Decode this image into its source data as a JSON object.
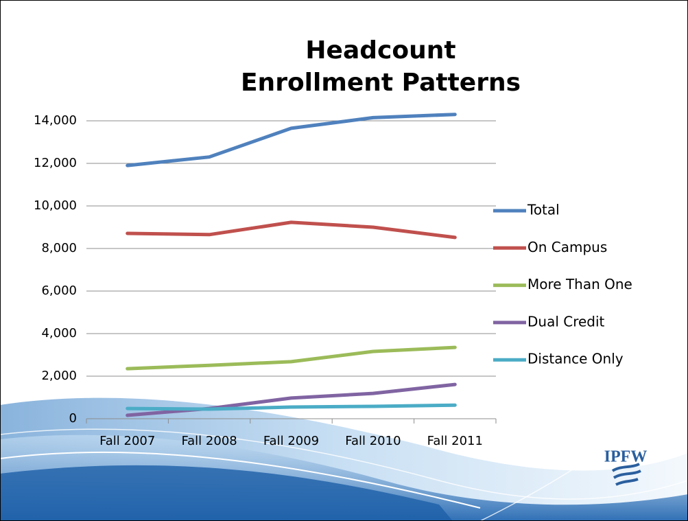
{
  "chart_data": {
    "type": "line",
    "title": [
      "Headcount",
      "Enrollment Patterns"
    ],
    "categories": [
      "Fall 2007",
      "Fall 2008",
      "Fall 2009",
      "Fall 2010",
      "Fall 2011"
    ],
    "series": [
      {
        "name": "Total",
        "color": "#4f81bd",
        "values": [
          11900,
          12300,
          13650,
          14150,
          14300
        ]
      },
      {
        "name": "On Campus",
        "color": "#c0504d",
        "values": [
          8710,
          8650,
          9230,
          9000,
          8520
        ]
      },
      {
        "name": "More Than One",
        "color": "#9bbb59",
        "values": [
          2350,
          2510,
          2680,
          3160,
          3350
        ]
      },
      {
        "name": "Dual Credit",
        "color": "#8064a2",
        "values": [
          160,
          480,
          970,
          1190,
          1610
        ]
      },
      {
        "name": "Distance Only",
        "color": "#4bacc6",
        "values": [
          480,
          450,
          550,
          580,
          640
        ]
      }
    ],
    "ylim": [
      0,
      14000
    ],
    "yticks": [
      0,
      {
        "value": 2000,
        "label": "2,000"
      },
      {
        "value": 4000,
        "label": "4,000"
      },
      {
        "value": 6000,
        "label": "6,000"
      },
      {
        "value": 8000,
        "label": "8,000"
      },
      {
        "value": 10000,
        "label": "10,000"
      },
      {
        "value": 12000,
        "label": "12,000"
      },
      {
        "value": 14000,
        "label": "14,000"
      }
    ],
    "grid": true,
    "legend": "right"
  },
  "logo": "IPFW"
}
